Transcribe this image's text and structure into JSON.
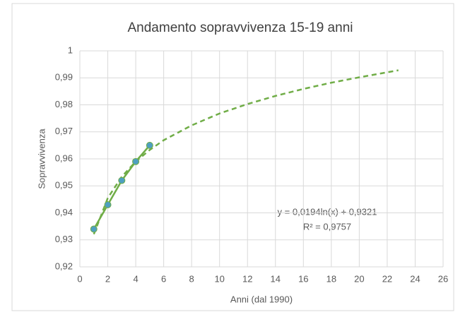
{
  "chart_data": {
    "type": "scatter",
    "title": "Andamento sopravvivenza 15-19 anni",
    "x_label": "Anni (dal 1990)",
    "y_label": "Sopravvivenza",
    "xlim": [
      0,
      26
    ],
    "xticks": [
      0,
      2,
      4,
      6,
      8,
      10,
      12,
      14,
      16,
      18,
      20,
      22,
      24,
      26
    ],
    "ylim": [
      0.92,
      1
    ],
    "yticks": [
      {
        "value": 0.92,
        "label": "0,92"
      },
      {
        "value": 0.93,
        "label": "0,93"
      },
      {
        "value": 0.94,
        "label": "0,94"
      },
      {
        "value": 0.95,
        "label": "0,95"
      },
      {
        "value": 0.96,
        "label": "0,96"
      },
      {
        "value": 0.97,
        "label": "0,97"
      },
      {
        "value": 0.98,
        "label": "0,98"
      },
      {
        "value": 0.99,
        "label": "0,99"
      },
      1
    ],
    "grid": true,
    "series": [
      {
        "color": "#70ad47",
        "marker_color": "#4e9fc0",
        "x": [
          1,
          2,
          3,
          4,
          5
        ],
        "values": [
          0.934,
          0.943,
          0.952,
          0.959,
          0.965
        ]
      }
    ],
    "trendline": {
      "color": "#70ad47",
      "x": [
        1,
        2,
        3,
        4,
        5,
        6,
        8,
        10,
        12,
        14,
        16,
        18,
        20,
        22.8
      ],
      "values": [
        0.9321,
        0.9455,
        0.9534,
        0.959,
        0.9633,
        0.9669,
        0.9724,
        0.9768,
        0.9803,
        0.9833,
        0.9859,
        0.9882,
        0.9902,
        0.9928
      ]
    },
    "annotations": [
      "y = 0,0194ln(x) + 0,9321",
      "R² = 0,9757"
    ]
  }
}
